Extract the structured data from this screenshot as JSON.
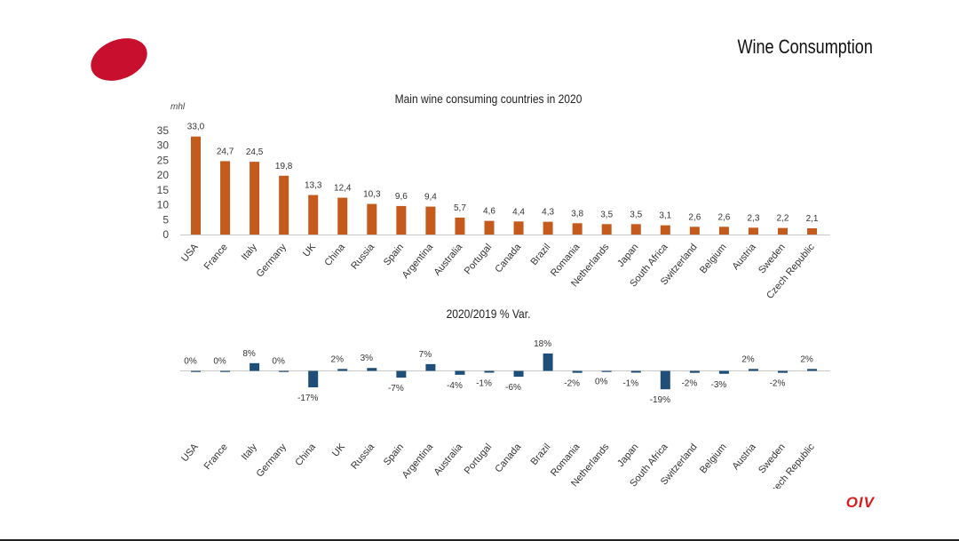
{
  "slide": {
    "title": "Wine Consumption",
    "brand": "OIV",
    "logo_color": "#c8102e"
  },
  "chart_data": [
    {
      "type": "bar",
      "title": "Main wine consuming countries in 2020",
      "ylabel": "mhl",
      "ylim": [
        0,
        35
      ],
      "yticks": [
        0,
        5,
        10,
        15,
        20,
        25,
        30,
        35
      ],
      "color": "#c55a1d",
      "categories": [
        "USA",
        "France",
        "Italy",
        "Germany",
        "UK",
        "China",
        "Russia",
        "Spain",
        "Argentina",
        "Australia",
        "Portugal",
        "Canada",
        "Brazil",
        "Romania",
        "Netherlands",
        "Japan",
        "South Africa",
        "Switzerland",
        "Belgium",
        "Austria",
        "Sweden",
        "Czech Republic"
      ],
      "values": [
        33.0,
        24.7,
        24.5,
        19.8,
        13.3,
        12.4,
        10.3,
        9.6,
        9.4,
        5.7,
        4.6,
        4.4,
        4.3,
        3.8,
        3.5,
        3.5,
        3.1,
        2.6,
        2.6,
        2.3,
        2.2,
        2.1
      ],
      "data_labels": [
        "33,0",
        "24,7",
        "24,5",
        "19,8",
        "13,3",
        "12,4",
        "10,3",
        "9,6",
        "9,4",
        "5,7",
        "4,6",
        "4,4",
        "4,3",
        "3,8",
        "3,5",
        "3,5",
        "3,1",
        "2,6",
        "2,6",
        "2,3",
        "2,2",
        "2,1"
      ]
    },
    {
      "type": "bar",
      "title": "2020/2019 % Var.",
      "color": "#1f4e79",
      "categories": [
        "USA",
        "France",
        "Italy",
        "Germany",
        "China",
        "UK",
        "Russia",
        "Spain",
        "Argentina",
        "Australia",
        "Portugal",
        "Canada",
        "Brazil",
        "Romania",
        "Netherlands",
        "Japan",
        "South Africa",
        "Switzerland",
        "Belgium",
        "Austria",
        "Sweden",
        "Czech Republic"
      ],
      "values": [
        0,
        0,
        8,
        0,
        -17,
        2,
        3,
        -7,
        7,
        -4,
        -1,
        -6,
        18,
        -2,
        0,
        -1,
        -19,
        -2,
        -3,
        2,
        -2,
        2
      ],
      "data_labels": [
        "0%",
        "0%",
        "8%",
        "0%",
        "-17%",
        "2%",
        "3%",
        "-7%",
        "7%",
        "-4%",
        "-1%",
        "-6%",
        "18%",
        "-2%",
        "0%",
        "-1%",
        "-19%",
        "-2%",
        "-3%",
        "2%",
        "-2%",
        "2%"
      ]
    }
  ]
}
